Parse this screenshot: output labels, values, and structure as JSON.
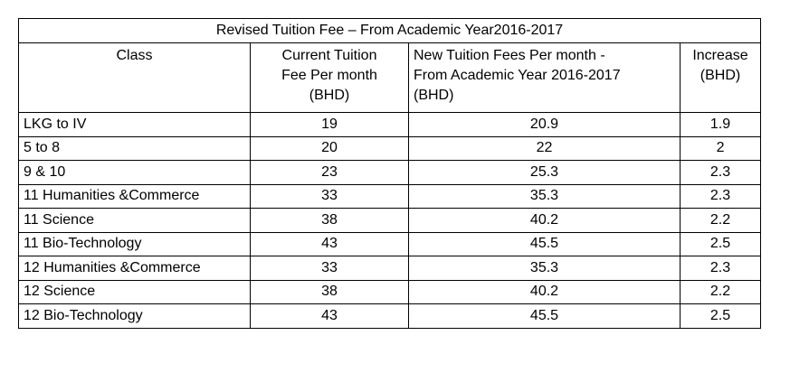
{
  "table": {
    "title": "Revised Tuition Fee  – From Academic Year2016-2017",
    "headers": {
      "class": "Class",
      "current_fee": [
        "Current Tuition",
        "Fee Per month",
        "(BHD)"
      ],
      "new_fee": [
        "New Tuition Fees Per month  -",
        "From Academic Year 2016-2017",
        "(BHD)"
      ],
      "increase": [
        "Increase",
        "(BHD)"
      ]
    },
    "rows": [
      {
        "class": "LKG to IV",
        "current": "19",
        "new": "20.9",
        "increase": "1.9"
      },
      {
        "class": "5 to 8",
        "current": "20",
        "new": "22",
        "increase": "2"
      },
      {
        "class": "9 & 10",
        "current": "23",
        "new": "25.3",
        "increase": "2.3"
      },
      {
        "class": "11 Humanities  &Commerce",
        "current": "33",
        "new": "35.3",
        "increase": "2.3"
      },
      {
        "class": "11 Science",
        "current": "38",
        "new": "40.2",
        "increase": "2.2"
      },
      {
        "class": "11 Bio-Technology",
        "current": "43",
        "new": "45.5",
        "increase": "2.5"
      },
      {
        "class": "12 Humanities  &Commerce",
        "current": "33",
        "new": "35.3",
        "increase": "2.3"
      },
      {
        "class": "12 Science",
        "current": "38",
        "new": "40.2",
        "increase": "2.2"
      },
      {
        "class": "12 Bio-Technology",
        "current": "43",
        "new": "45.5",
        "increase": "2.5"
      }
    ]
  }
}
